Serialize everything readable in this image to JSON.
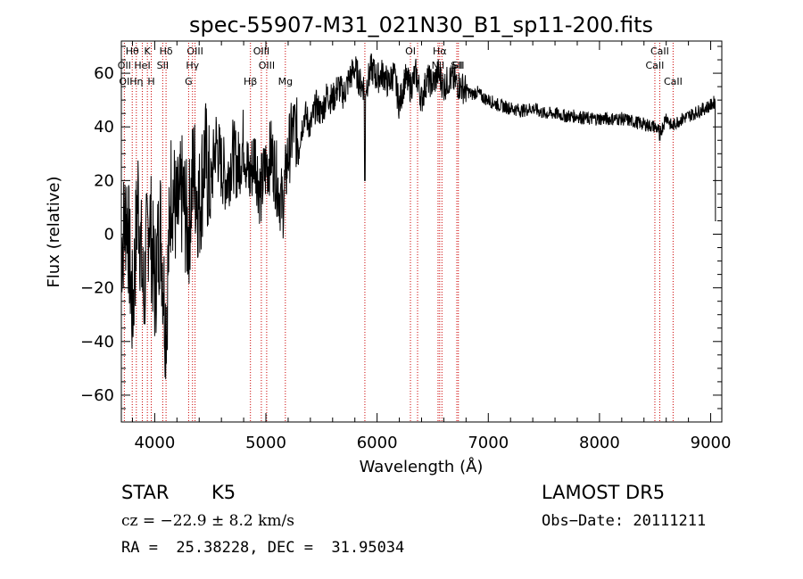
{
  "chart_data": {
    "type": "line",
    "title": "spec-55907-M31_021N30_B1_sp11-200.fits",
    "xlabel": "Wavelength (Å)",
    "ylabel": "Flux (relative)",
    "xlim": [
      3700,
      9100
    ],
    "ylim": [
      -70,
      72
    ],
    "xticks": [
      4000,
      5000,
      6000,
      7000,
      8000,
      9000
    ],
    "yticks": [
      -60,
      -40,
      -20,
      0,
      20,
      40,
      60
    ],
    "grid": false,
    "line_color": "#000000",
    "marker_color": "#cc0000",
    "series": [
      {
        "x": [
          3700,
          3750,
          3800,
          3850,
          3900,
          3950,
          4000,
          4050,
          4100,
          4150,
          4200,
          4250,
          4300,
          4350,
          4400,
          4450,
          4500,
          4550,
          4600,
          4650,
          4700,
          4750,
          4800,
          4850,
          4900,
          4950,
          5000,
          5050,
          5100,
          5150,
          5200,
          5250,
          5300,
          5350,
          5400,
          5450,
          5500,
          5550,
          5600,
          5650,
          5700,
          5750,
          5800,
          5850,
          5900,
          5950,
          6000,
          6050,
          6100,
          6150,
          6200,
          6250,
          6300,
          6350,
          6400,
          6450,
          6500,
          6550,
          6600,
          6650,
          6700,
          6750,
          6800,
          6850,
          6900,
          6950,
          7000,
          7100,
          7200,
          7300,
          7400,
          7500,
          7600,
          7700,
          7800,
          7900,
          8000,
          8100,
          8200,
          8300,
          8400,
          8500,
          8550,
          8600,
          8650,
          8700,
          8800,
          8900,
          9000,
          9050
        ],
        "y": [
          -5,
          10,
          -30,
          15,
          -25,
          10,
          -20,
          5,
          -35,
          20,
          5,
          15,
          0,
          25,
          10,
          30,
          15,
          35,
          25,
          20,
          30,
          25,
          35,
          20,
          30,
          15,
          25,
          30,
          20,
          10,
          30,
          40,
          35,
          45,
          40,
          48,
          45,
          52,
          50,
          55,
          52,
          58,
          62,
          56,
          55,
          62,
          58,
          60,
          56,
          60,
          48,
          58,
          55,
          60,
          50,
          58,
          56,
          60,
          55,
          58,
          57,
          55,
          54,
          52,
          53,
          51,
          50,
          48,
          47,
          46,
          47,
          45,
          45,
          44,
          44,
          43,
          43,
          43,
          43,
          42,
          41,
          40,
          38,
          44,
          40,
          42,
          44,
          46,
          48,
          50
        ]
      }
    ],
    "line_markers": [
      {
        "label": "Hθ",
        "x": 3798
      },
      {
        "label": "K",
        "x": 3934
      },
      {
        "label": "Hδ",
        "x": 4102
      },
      {
        "label": "OIII",
        "x": 4363
      },
      {
        "label": "OIII",
        "x": 4959
      },
      {
        "label": "OII",
        "x": 3727
      },
      {
        "label": "HeI",
        "x": 3889
      },
      {
        "label": "SII",
        "x": 4072
      },
      {
        "label": "Hγ",
        "x": 4340
      },
      {
        "label": "OIII",
        "x": 5007
      },
      {
        "label": "OI",
        "x": 3727
      },
      {
        "label": "Hη",
        "x": 3835
      },
      {
        "label": "H",
        "x": 3969
      },
      {
        "label": "G",
        "x": 4305
      },
      {
        "label": "Hβ",
        "x": 4861
      },
      {
        "label": "Mg",
        "x": 5175
      },
      {
        "label": "OI",
        "x": 6300
      },
      {
        "label": "Hα",
        "x": 6563
      },
      {
        "label": "SII",
        "x": 6717
      },
      {
        "label": "NII",
        "x": 6548
      },
      {
        "label": "SII",
        "x": 6731
      },
      {
        "label": "CaII",
        "x": 8542
      },
      {
        "label": "CaII",
        "x": 8498
      },
      {
        "label": "CaII",
        "x": 8662
      }
    ],
    "extra_marker_lines": [
      5890,
      6364,
      6583
    ]
  },
  "footer": {
    "object_class": "STAR",
    "subclass": "K5",
    "survey": "LAMOST DR5",
    "cz": "cz = −22.9 ± 8.2 km/s",
    "obs_date": "Obs−Date: 20111211",
    "radec": "RA =  25.38228, DEC =  31.95034"
  }
}
